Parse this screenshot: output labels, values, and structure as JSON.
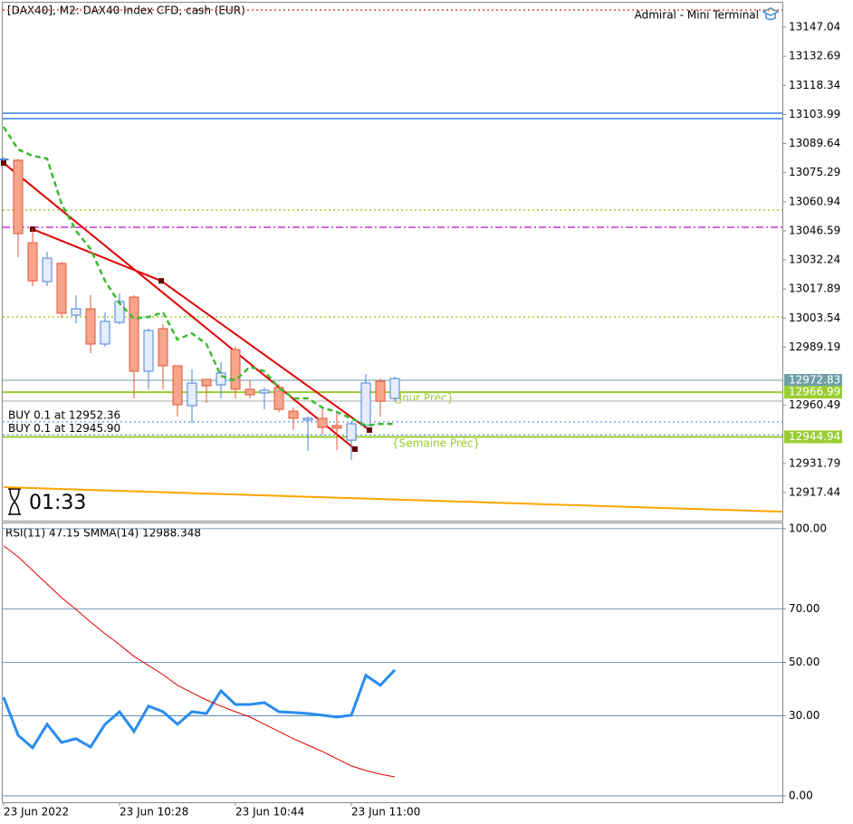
{
  "chart_data": [
    {
      "type": "candlestick",
      "title": "[DAX40], M2:  DAX40 Index CFD, cash (EUR)",
      "brand": "Admiral - Mini Terminal",
      "timer": "01:33",
      "open": [
        13082,
        13081.4,
        13040.7,
        13021.5,
        13030.5,
        13005.0,
        13008.1,
        12990.7,
        13001.4,
        13013.9,
        12977.3,
        12998.3,
        12980.0,
        12960.3,
        12973.3,
        12970.6,
        12988.0,
        12968.4,
        12966.6,
        12969.3,
        12957.6,
        12953.2,
        12954.1,
        12950.5,
        12943.3,
        12950.5,
        12972.4,
        12963.9
      ],
      "high": [
        13083,
        13082,
        13047.4,
        13036.3,
        13031.3,
        13014.8,
        13014.8,
        13006.3,
        13015.7,
        13014.8,
        12998.3,
        13000.5,
        12980.0,
        12978.2,
        12973.3,
        12981.8,
        12989.4,
        12972.8,
        12969.3,
        12971.0,
        12959.4,
        12955.0,
        12959.4,
        12957.2,
        12952.7,
        12975.9,
        12973.7,
        12974.6
      ],
      "low": [
        13081,
        13033.6,
        13019.3,
        13019.3,
        13003.6,
        13001.0,
        12986.2,
        12989.4,
        13000.6,
        12963.9,
        12968.4,
        12968.4,
        12955.0,
        12951.8,
        12961.7,
        12963.9,
        12963.9,
        12963.9,
        12958.5,
        12957.2,
        12948.3,
        12938.0,
        12946.0,
        12938.4,
        12933.5,
        12949.6,
        12955.0,
        12962.5
      ],
      "close": [
        13082,
        13045.2,
        13021.9,
        13033.1,
        13005.9,
        13008.1,
        12990.7,
        13001.9,
        13011.7,
        12977.3,
        12997.4,
        12980.0,
        12960.8,
        12971.5,
        12970.1,
        12976.4,
        12968.4,
        12965.7,
        12967.9,
        12958.5,
        12954.1,
        12954.1,
        12949.6,
        12949.2,
        12951.4,
        12971.5,
        12962.5,
        12973.7
      ],
      "up_color": "#4a7fd4",
      "down_color": "#e2553a",
      "ma": {
        "values": [
          13097.9,
          13086.7,
          13083.6,
          13082.2,
          13059.9,
          13046.5,
          13037.6,
          13021.9,
          13010.8,
          13003.2,
          13004.1,
          13006.3,
          12992.9,
          12996.0,
          12990.7,
          12975.0,
          12972.8,
          12979.5,
          12977.3,
          12969.2,
          12963.9,
          12963.9,
          12959.4,
          12957.2,
          12954.0,
          12950.5,
          12951.3,
          12951.3
        ],
        "color": "#3cb832"
      },
      "levels": [
        {
          "value": 13155.5,
          "color": "#e0522d",
          "style": "dotted"
        },
        {
          "value": 13104.6,
          "color": "#3a7ff0",
          "style": "solid"
        },
        {
          "value": 13101.9,
          "color": "#3a7ff0",
          "style": "solid"
        },
        {
          "value": 13056.8,
          "color": "#9acd32",
          "style": "dotted"
        },
        {
          "value": 13048.3,
          "color": "#cc33cc",
          "style": "dashdot"
        },
        {
          "value": 13004.1,
          "color": "#9acd32",
          "style": "dotted"
        },
        {
          "value": 12962.6,
          "color": "#c8c8c8",
          "style": "solid"
        }
      ],
      "price_tags": [
        {
          "value": 12972.83,
          "color": "#6f9fa8"
        },
        {
          "value": 12966.99,
          "color": "#9acd32"
        },
        {
          "value": 12944.94,
          "color": "#9acd32"
        }
      ],
      "orders": [
        {
          "text": "BUY 0.1 at 12952.36",
          "value": 12952.36
        },
        {
          "text": "BUY 0.1 at 12945.90",
          "value": 12945.9
        }
      ],
      "notes": [
        "{Jour Préc}",
        "{Semaine Préc}"
      ],
      "trendlines": [
        {
          "x": [
            0,
            24.25
          ],
          "values": [
            13080.0,
            12938.9
          ],
          "color": "#e00000"
        },
        {
          "x": [
            2,
            10.875,
            25.25
          ],
          "values": [
            13047.4,
            13021.9,
            12948.3
          ],
          "color": "#e00000"
        },
        {
          "x": [
            0,
            53.75
          ],
          "values": [
            12920.1,
            12908.0
          ],
          "color": "#ffa500"
        }
      ],
      "ylim": [
        12903.6,
        13159.1
      ],
      "yticks": [
        13147.04,
        13132.69,
        13118.34,
        13103.99,
        13089.64,
        13075.29,
        13060.94,
        13046.59,
        13032.24,
        13017.89,
        13003.54,
        12989.19,
        12960.49,
        12931.79,
        12917.44
      ]
    },
    {
      "type": "line",
      "title": "RSI(11) 47.15 SMMA(14) 12988.348",
      "categories": [
        "23 Jun 2022",
        null,
        null,
        null,
        null,
        null,
        null,
        null,
        "23 Jun 10:28",
        null,
        null,
        null,
        null,
        null,
        null,
        null,
        "23 Jun 10:44",
        null,
        null,
        null,
        null,
        null,
        null,
        null,
        "23 Jun 11:00",
        null,
        null,
        null
      ],
      "xlim": [
        -0.0625,
        53.75
      ],
      "series": [
        {
          "color": "#2a8cf0",
          "values": [
            36.9,
            22.7,
            18.0,
            26.8,
            20.0,
            21.4,
            18.3,
            26.8,
            31.5,
            24.1,
            33.6,
            31.5,
            26.8,
            31.5,
            30.8,
            39.3,
            34.2,
            34.2,
            34.9,
            31.5,
            31.2,
            30.8,
            30.2,
            29.5,
            30.2,
            45.1,
            41.4,
            47.15
          ]
        },
        {
          "color": "#e00000",
          "values": [
            93.6,
            89.5,
            84.4,
            79.3,
            74.2,
            69.8,
            65.1,
            60.7,
            56.6,
            52.2,
            48.8,
            45.4,
            41.4,
            38.6,
            35.9,
            33.6,
            31.5,
            29.5,
            26.8,
            24.1,
            21.4,
            19.0,
            16.6,
            13.9,
            11.2,
            9.5,
            8.1,
            7.1
          ]
        }
      ],
      "ylim": [
        -2.4,
        102
      ],
      "yticks": [
        {
          "value": 100,
          "label": "100.00"
        },
        {
          "value": 70,
          "label": "70.00"
        },
        {
          "value": 50,
          "label": "50.00"
        },
        {
          "value": 30,
          "label": "30.00"
        },
        {
          "value": 0,
          "label": "0.00"
        }
      ],
      "grid_color": "#4682b4"
    }
  ]
}
